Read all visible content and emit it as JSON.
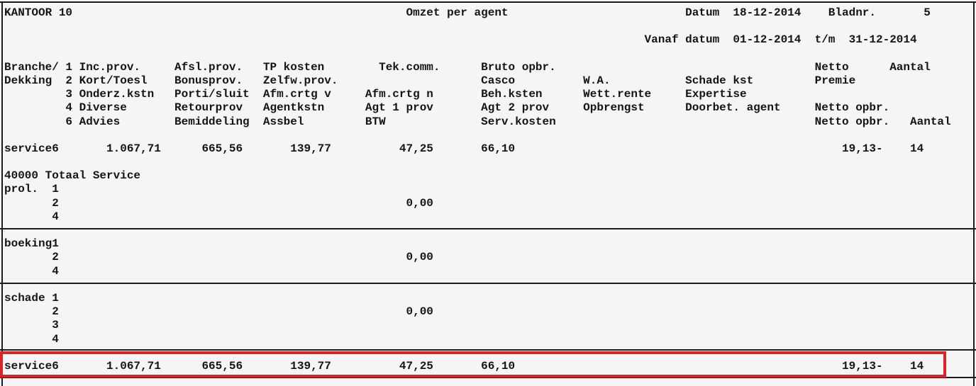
{
  "page": {
    "background": "#f5f5f6",
    "text_color": "#141414",
    "border_color": "#1c1c1c",
    "highlight_color": "#de2127"
  },
  "structured": {
    "page_header": {
      "office": "KANTOOR 10",
      "title": "Omzet per agent",
      "date_label": "Datum",
      "date": "18-12-2014",
      "page_label": "Bladnr.",
      "page_number": "5"
    },
    "period": {
      "label": "Vanaf datum",
      "from": "01-12-2014",
      "to_label": "t/m",
      "to": "31-12-2014"
    },
    "legend_rows": [
      {
        "label": "Branche/",
        "code": "1",
        "cols": [
          "Inc.prov.",
          "Afsl.prov.",
          "TP kosten",
          "Tek.comm.",
          "Bruto opbr.",
          "",
          "",
          "Netto",
          "Aantal"
        ]
      },
      {
        "label": "Dekking",
        "code": "2",
        "cols": [
          "Kort/Toesl",
          "Bonusprov.",
          "Zelfw.prov.",
          "",
          "Casco",
          "W.A.",
          "Schade kst",
          "Premie",
          ""
        ]
      },
      {
        "label": "",
        "code": "3",
        "cols": [
          "Onderz.kstn",
          "Porti/sluit",
          "Afm.crtg v",
          "Afm.crtg n",
          "Beh.ksten",
          "Wett.rente",
          "Expertise",
          "",
          ""
        ]
      },
      {
        "label": "",
        "code": "4",
        "cols": [
          "Diverse",
          "Retourprov",
          "Agentkstn",
          "Agt 1 prov",
          "Agt 2 prov",
          "Opbrengst",
          "Doorbet. agent",
          "Netto opbr.",
          ""
        ]
      },
      {
        "label": "",
        "code": "6",
        "cols": [
          "Advies",
          "Bemiddeling",
          "Assbel",
          "BTW",
          "Serv.kosten",
          "",
          "",
          "Netto opbr.",
          "Aantal"
        ]
      }
    ],
    "data_rows": [
      {
        "label": "service6",
        "highlighted": false,
        "values": [
          "1.067,71",
          "665,56",
          "139,77",
          "47,25",
          "66,10",
          "19,13-",
          "14"
        ]
      },
      {
        "label": "40000 Totaal Service",
        "values": []
      },
      {
        "label": "prol.",
        "subrows": [
          {
            "code": "1",
            "value": ""
          },
          {
            "code": "2",
            "value": "0,00"
          },
          {
            "code": "4",
            "value": ""
          }
        ]
      },
      {
        "label": "boeking1",
        "subrows": [
          {
            "code": "2",
            "value": "0,00"
          },
          {
            "code": "4",
            "value": ""
          }
        ]
      },
      {
        "label": "schade 1",
        "subrows": [
          {
            "code": "2",
            "value": "0,00"
          },
          {
            "code": "3",
            "value": ""
          },
          {
            "code": "4",
            "value": ""
          }
        ]
      },
      {
        "label": "service6",
        "highlighted": true,
        "values": [
          "1.067,71",
          "665,56",
          "139,77",
          "47,25",
          "66,10",
          "19,13-",
          "14"
        ]
      }
    ]
  },
  "lines": [
    "KANTOOR 10                                                 Omzet per agent                          Datum  18-12-2014    Bladnr.       5",
    "",
    "                                                                                              Vanaf datum  01-12-2014  t/m  31-12-2014",
    "",
    "Branche/ 1 Inc.prov.     Afsl.prov.   TP kosten        Tek.comm.      Bruto opbr.                                      Netto      Aantal",
    "Dekking  2 Kort/Toesl    Bonusprov.   Zelfw.prov.                     Casco          W.A.           Schade kst         Premie",
    "         3 Onderz.kstn   Porti/sluit  Afm.crtg v     Afm.crtg n       Beh.ksten      Wett.rente     Expertise",
    "         4 Diverse       Retourprov   Agentkstn      Agt 1 prov       Agt 2 prov     Opbrengst      Doorbet. agent     Netto opbr.",
    "         6 Advies        Bemiddeling  Assbel         BTW              Serv.kosten                                      Netto opbr.   Aantal",
    "",
    "service6       1.067,71      665,56       139,77          47,25       66,10                                                19,13-    14",
    "",
    "40000 Totaal Service",
    "prol.  1",
    "       2                                                   0,00",
    "       4",
    "",
    "boeking1",
    "       2                                                   0,00",
    "       4",
    "",
    "schade 1",
    "       2                                                   0,00",
    "       3",
    "       4",
    "",
    "service6       1.067,71      665,56       139,77          47,25       66,10                                                19,13-    14"
  ]
}
